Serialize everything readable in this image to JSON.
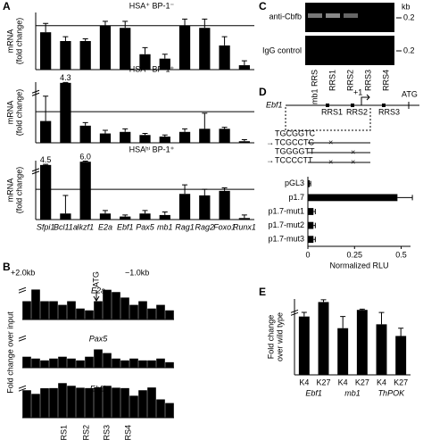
{
  "panel_labels": [
    "A",
    "B",
    "C",
    "D",
    "E"
  ],
  "chart_data": [
    {
      "type": "bar",
      "title": "HSA⁺ BP-1⁻",
      "ylabel": [
        "mRNA",
        "(fold change)"
      ],
      "values": [
        0.85,
        0.65,
        0.65,
        1.0,
        0.95,
        0.35,
        0.25,
        1.0,
        0.95,
        0.55,
        0.1
      ],
      "errors": [
        0.2,
        0.1,
        0.05,
        0.1,
        0.15,
        0.15,
        0.1,
        0.15,
        0.2,
        0.2,
        0.1
      ],
      "ylim": [
        0,
        1.3
      ],
      "reference_line": 1,
      "color": "#000000"
    },
    {
      "type": "bar",
      "title": "HSA⁺ BP-1⁺",
      "ylabel": [
        "mRNA",
        "(fold change)"
      ],
      "values": [
        0.7,
        4.3,
        0.55,
        0.3,
        0.35,
        0.25,
        0.2,
        0.35,
        0.45,
        0.45,
        0.05
      ],
      "errors": [
        0.8,
        0.1,
        0.1,
        0.1,
        0.1,
        0.05,
        0.05,
        0.1,
        0.5,
        0.05,
        0.05
      ],
      "value_labels": [
        null,
        "4.3",
        null,
        null,
        null,
        null,
        null,
        null,
        null,
        null,
        null
      ],
      "ylim": [
        0,
        4.5
      ],
      "reference_line": 1,
      "color": "#000000"
    },
    {
      "type": "bar",
      "title": "HSAʰⁱ BP-1⁺",
      "ylabel": [
        "mRNA",
        "(fold change)"
      ],
      "categories": [
        "Sfpi1",
        "Bcl11a",
        "Ikzf1",
        "E2a",
        "Ebf1",
        "Pax5",
        "mb1",
        "Rag1",
        "Rag2",
        "Foxo1",
        "Runx1"
      ],
      "values": [
        4.5,
        0.2,
        6.0,
        0.2,
        0.1,
        0.2,
        0.15,
        0.85,
        0.8,
        0.95,
        0.05
      ],
      "errors": [
        0.3,
        0.6,
        0.3,
        0.1,
        0.05,
        0.1,
        0.1,
        0.3,
        0.2,
        0.1,
        0.1
      ],
      "value_labels": [
        "4.5",
        null,
        "6.0",
        null,
        null,
        null,
        null,
        null,
        null,
        null,
        null
      ],
      "ylim": [
        0,
        6.5
      ],
      "reference_line": 1,
      "color": "#000000"
    },
    {
      "type": "bar",
      "title": "E2a",
      "values": [
        1.0,
        2.5,
        1.0,
        1.0,
        0.8,
        1.0,
        0.6,
        0.5,
        1.0,
        2.2,
        1.5,
        1.2,
        0.8,
        1.0,
        0.6,
        0.8,
        0.5
      ],
      "ylim": [
        0,
        10
      ],
      "color": "#000000"
    },
    {
      "type": "bar",
      "title": "Pax5",
      "values": [
        0.6,
        0.5,
        0.4,
        0.5,
        0.6,
        0.5,
        0.4,
        0.6,
        1.0,
        0.8,
        0.5,
        0.4,
        0.5,
        0.4,
        0.4,
        0.5,
        0.3
      ],
      "ylim": [
        0,
        10
      ],
      "color": "#000000"
    },
    {
      "type": "bar",
      "title": "Ebf1",
      "values": [
        1.5,
        1.3,
        1.8,
        2.0,
        8.5,
        5.0,
        2.5,
        2.0,
        3.0,
        5.0,
        2.5,
        2.0,
        1.2,
        1.5,
        2.8,
        1.0,
        0.8
      ],
      "ylim": [
        0,
        10
      ],
      "color": "#000000"
    },
    {
      "type": "hbar",
      "categories": [
        "pGL3",
        "p1.7",
        "p1.7-mut1",
        "p1.7-mut2",
        "p1.7-mut3"
      ],
      "values": [
        0.01,
        0.48,
        0.03,
        0.03,
        0.03
      ],
      "errors": [
        0.005,
        0.08,
        0.01,
        0.01,
        0.01
      ],
      "xlim": [
        0,
        0.55
      ],
      "xticks": [
        0,
        0.25,
        0.5
      ],
      "xlabel": "Normalized RLU",
      "color": "#000000"
    },
    {
      "type": "bar",
      "ylabel": [
        "Fold change",
        "over wild type"
      ],
      "categories": [
        "K4",
        "K27",
        "K4",
        "K27",
        "K4",
        "K27"
      ],
      "groups": [
        "Ebf1",
        "mb1",
        "ThPOK"
      ],
      "values": [
        1.5,
        12,
        1.2,
        4.3,
        1.3,
        1.0
      ],
      "errors": [
        0.4,
        2.2,
        0.3,
        0.7,
        0.5,
        0.2
      ],
      "ylim": [
        0,
        15
      ],
      "color": "#000000"
    }
  ],
  "chip": {
    "xlabels": [
      "+2.0kb",
      "−1.0kb"
    ],
    "atg": "ATG",
    "ylabel": "Fold change over input",
    "sites": [
      "RRS1",
      "RRS2",
      "RRS3",
      "RRS4"
    ]
  },
  "gel": {
    "top": "anti-Cbfb",
    "bottom": "IgG control",
    "unit": "kb",
    "sizes": [
      "0.2",
      "0.2"
    ],
    "lanes": [
      "mb1 RRS",
      "RRS1",
      "RRS2",
      "RRS3",
      "RRS4"
    ]
  },
  "diagram": {
    "gene": "Ebf1",
    "sites": [
      "RRS1",
      "RRS2",
      "RRS3"
    ],
    "tss": "+1",
    "atg": "ATG",
    "sequences": [
      "TGCGGTC",
      "TCGCCTC",
      "TGGGGTT",
      "TCCCCTT"
    ]
  }
}
